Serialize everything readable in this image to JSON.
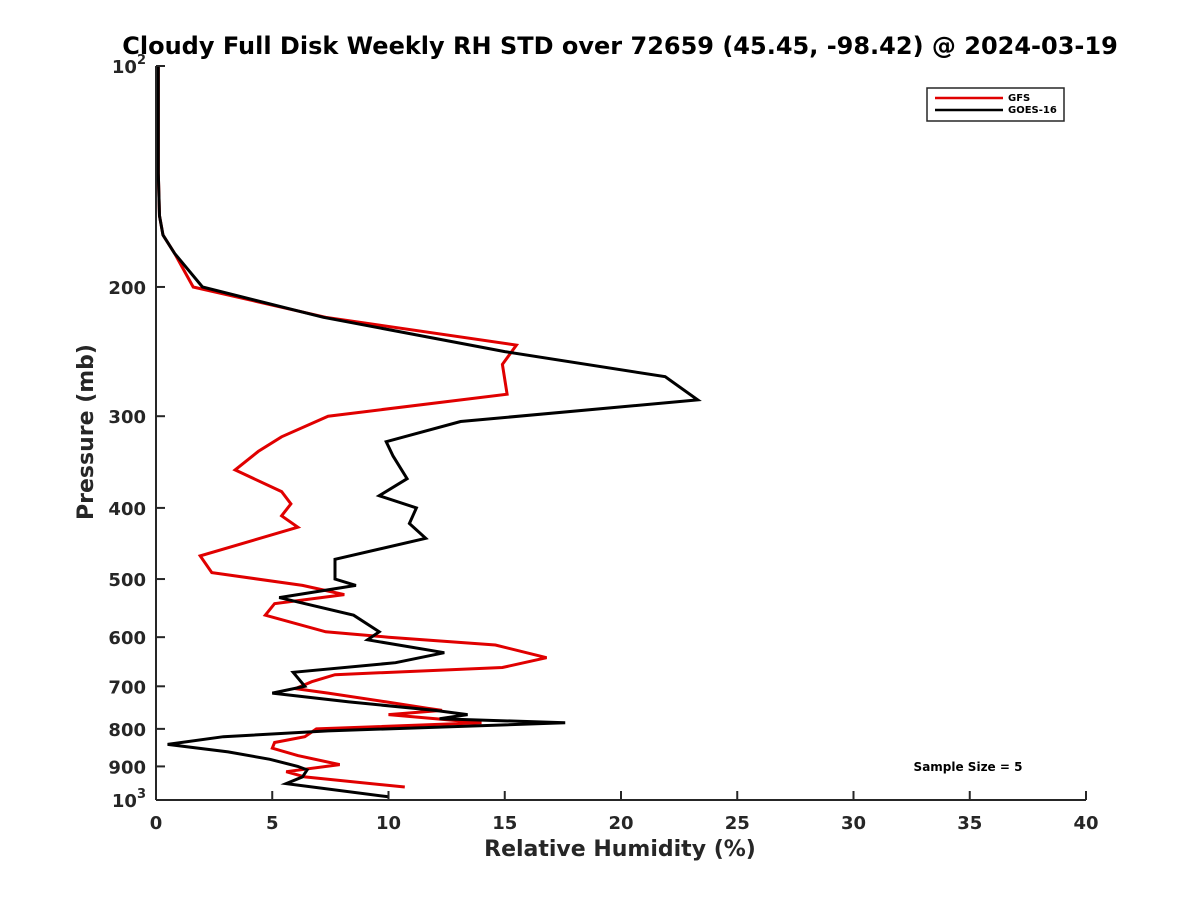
{
  "chart_data": {
    "type": "line",
    "title": "Cloudy Full Disk Weekly RH STD over 72659 (45.45, -98.42) @ 2024-03-19",
    "xlabel": "Relative Humidity (%)",
    "ylabel": "Pressure (mb)",
    "xlim": [
      0,
      40
    ],
    "ylim": [
      100,
      1000
    ],
    "yscale": "log",
    "y_reversed": true,
    "x_ticks": [
      "0",
      "5",
      "10",
      "15",
      "20",
      "25",
      "30",
      "35",
      "40"
    ],
    "y_ticks": [
      {
        "value": 100,
        "base": "10",
        "exp": "2"
      },
      {
        "value": 200,
        "label": "200"
      },
      {
        "value": 300,
        "label": "300"
      },
      {
        "value": 400,
        "label": "400"
      },
      {
        "value": 500,
        "label": "500"
      },
      {
        "value": 600,
        "label": "600"
      },
      {
        "value": 700,
        "label": "700"
      },
      {
        "value": 800,
        "label": "800"
      },
      {
        "value": 900,
        "label": "900"
      },
      {
        "value": 1000,
        "base": "10",
        "exp": "3"
      }
    ],
    "grid": false,
    "legend_position": "top-right",
    "annotation": "Sample Size = 5",
    "series": [
      {
        "name": "GFS",
        "color": "#e00000",
        "x": [
          0.1,
          0.1,
          0.1,
          0.15,
          0.3,
          0.8,
          1.6,
          7.3,
          15.5,
          14.9,
          15.1,
          7.4,
          5.4,
          4.4,
          3.4,
          5.4,
          5.8,
          5.4,
          6.1,
          1.9,
          2.4,
          6.3,
          8.1,
          5.1,
          4.7,
          7.3,
          10.0,
          14.6,
          16.8,
          14.9,
          7.7,
          6.7,
          6.0,
          7.4,
          9.9,
          11.7,
          12.3,
          10.0,
          14.0,
          6.9,
          6.4,
          5.1,
          5.0,
          6.1,
          7.9,
          5.6,
          6.4,
          10.7
        ],
        "y": [
          100,
          120,
          140,
          160,
          170,
          180,
          200,
          220,
          240,
          255,
          280,
          300,
          320,
          335,
          355,
          380,
          395,
          410,
          425,
          465,
          490,
          510,
          525,
          540,
          560,
          590,
          600,
          615,
          640,
          660,
          675,
          690,
          705,
          715,
          735,
          750,
          755,
          765,
          785,
          800,
          820,
          835,
          850,
          870,
          895,
          915,
          930,
          960
        ]
      },
      {
        "name": "GOES-16",
        "color": "#000000",
        "x": [
          0.1,
          0.1,
          0.1,
          0.15,
          0.3,
          0.8,
          2.0,
          7.2,
          15.0,
          21.9,
          23.3,
          13.1,
          9.9,
          10.2,
          10.8,
          9.6,
          11.2,
          10.9,
          11.6,
          7.7,
          7.7,
          8.6,
          5.3,
          8.5,
          9.6,
          9.1,
          12.4,
          10.3,
          5.9,
          6.4,
          5.0,
          8.3,
          12.0,
          13.4,
          12.2,
          17.6,
          7.4,
          2.9,
          0.5,
          3.1,
          4.9,
          6.1,
          6.5,
          6.3,
          5.6,
          10.0
        ],
        "y": [
          100,
          120,
          140,
          160,
          170,
          180,
          200,
          220,
          245,
          265,
          285,
          305,
          325,
          340,
          365,
          385,
          400,
          420,
          440,
          470,
          500,
          510,
          530,
          560,
          590,
          605,
          630,
          650,
          670,
          700,
          715,
          735,
          755,
          765,
          775,
          785,
          805,
          820,
          840,
          860,
          880,
          900,
          910,
          930,
          950,
          990
        ]
      }
    ]
  }
}
